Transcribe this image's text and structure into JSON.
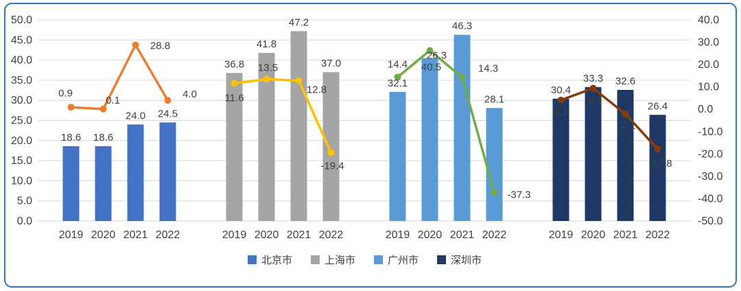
{
  "frame": {
    "border_color": "#2E75B6",
    "background": "#FFFFFF"
  },
  "chart_data": {
    "type": "bar",
    "overlay_type": "line",
    "title": "",
    "categories": [
      "2019",
      "2020",
      "2021",
      "2022"
    ],
    "grid": true,
    "grid_color": "#D9D9D9",
    "text_color": "#404040",
    "left_axis": {
      "min": 0,
      "max": 50,
      "step": 5,
      "ticks": [
        "0.0",
        "5.0",
        "10.0",
        "15.0",
        "20.0",
        "25.0",
        "30.0",
        "35.0",
        "40.0",
        "45.0",
        "50.0"
      ]
    },
    "right_axis": {
      "min": -50,
      "max": 40,
      "step": 10,
      "ticks": [
        "-50.0",
        "-40.0",
        "-30.0",
        "-20.0",
        "-10.0",
        "0.0",
        "10.0",
        "20.0",
        "30.0",
        "40.0"
      ]
    },
    "groups": [
      {
        "city": "北京市",
        "bar_color": "#4472C4",
        "line_color": "#ED7D31",
        "bar_values": [
          18.6,
          18.6,
          24.0,
          24.5
        ],
        "line_values": [
          0.9,
          0.1,
          28.8,
          4.0
        ]
      },
      {
        "city": "上海市",
        "bar_color": "#A5A5A5",
        "line_color": "#FFC000",
        "bar_values": [
          36.8,
          41.8,
          47.2,
          37.0
        ],
        "line_values": [
          11.6,
          13.5,
          12.8,
          -19.4
        ]
      },
      {
        "city": "广州市",
        "bar_color": "#5B9BD5",
        "line_color": "#70AD47",
        "bar_values": [
          32.1,
          40.5,
          46.3,
          28.1
        ],
        "line_values": [
          14.4,
          26.3,
          14.3,
          -37.3
        ]
      },
      {
        "city": "深圳市",
        "bar_color": "#1F3864",
        "line_color": "#843C0B",
        "bar_values": [
          30.4,
          33.3,
          32.6,
          26.4
        ],
        "line_values": [
          4.1,
          9.4,
          -2.1,
          -17.8
        ]
      }
    ],
    "legend": {
      "position": "bottom",
      "items": [
        {
          "label": "北京市",
          "color": "#4472C4"
        },
        {
          "label": "上海市",
          "color": "#A5A5A5"
        },
        {
          "label": "广州市",
          "color": "#5B9BD5"
        },
        {
          "label": "深圳市",
          "color": "#1F3864"
        }
      ]
    }
  }
}
